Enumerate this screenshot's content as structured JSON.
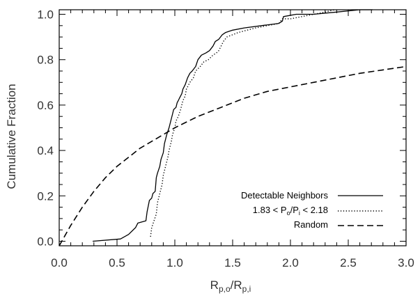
{
  "chart_data": {
    "type": "line",
    "xlabel": {
      "main": "R",
      "sub1": "p,o",
      "mid": "/R",
      "sub2": "p,i"
    },
    "ylabel": "Cumulative Fraction",
    "xlim": [
      0.0,
      3.0
    ],
    "ylim": [
      -0.02,
      1.02
    ],
    "x_ticks": [
      {
        "value": 0.0,
        "label": "0.0"
      },
      {
        "value": 0.5,
        "label": "0.5"
      },
      {
        "value": 1.0,
        "label": "1.0"
      },
      {
        "value": 1.5,
        "label": "1.5"
      },
      {
        "value": 2.0,
        "label": "2.0"
      },
      {
        "value": 2.5,
        "label": "2.5"
      },
      {
        "value": 3.0,
        "label": "3.0"
      }
    ],
    "y_ticks": [
      {
        "value": 0.0,
        "label": "0.0"
      },
      {
        "value": 0.2,
        "label": "0.2"
      },
      {
        "value": 0.4,
        "label": "0.4"
      },
      {
        "value": 0.6,
        "label": "0.6"
      },
      {
        "value": 0.8,
        "label": "0.8"
      },
      {
        "value": 1.0,
        "label": "1.0"
      }
    ],
    "grid": false,
    "legend_position": "bottom-right",
    "series": [
      {
        "name": "Detectable Neighbors",
        "line_style": "solid",
        "x": [
          0.29,
          0.53,
          0.6,
          0.66,
          0.68,
          0.75,
          0.76,
          0.78,
          0.8,
          0.81,
          0.83,
          0.84,
          0.85,
          0.87,
          0.88,
          0.9,
          0.91,
          0.93,
          0.95,
          0.97,
          0.98,
          0.99,
          1.01,
          1.02,
          1.03,
          1.04,
          1.06,
          1.07,
          1.09,
          1.11,
          1.13,
          1.15,
          1.18,
          1.2,
          1.23,
          1.27,
          1.3,
          1.33,
          1.35,
          1.38,
          1.41,
          1.44,
          1.5,
          1.6,
          1.75,
          1.9,
          1.93,
          1.94,
          2.05,
          2.2,
          2.4,
          2.6,
          2.71
        ],
        "y": [
          0.0,
          0.01,
          0.03,
          0.06,
          0.08,
          0.09,
          0.13,
          0.18,
          0.19,
          0.21,
          0.22,
          0.28,
          0.3,
          0.33,
          0.36,
          0.39,
          0.43,
          0.47,
          0.5,
          0.54,
          0.56,
          0.58,
          0.59,
          0.61,
          0.62,
          0.63,
          0.65,
          0.67,
          0.69,
          0.72,
          0.74,
          0.75,
          0.77,
          0.8,
          0.82,
          0.83,
          0.84,
          0.86,
          0.88,
          0.89,
          0.91,
          0.92,
          0.93,
          0.94,
          0.95,
          0.96,
          0.97,
          0.99,
          1.0,
          1.0,
          1.01,
          1.02,
          1.02
        ]
      },
      {
        "name": "1.83 < Po/Pi < 2.18",
        "line_style": "dotted",
        "x": [
          0.79,
          0.8,
          0.84,
          0.85,
          0.87,
          0.89,
          0.9,
          0.92,
          0.94,
          0.95,
          0.97,
          0.98,
          1.0,
          1.01,
          1.03,
          1.05,
          1.07,
          1.09,
          1.1,
          1.13,
          1.16,
          1.18,
          1.22,
          1.25,
          1.29,
          1.33,
          1.36,
          1.38,
          1.4,
          1.42,
          1.45,
          1.55,
          1.7,
          1.8,
          1.9,
          1.93,
          2.0,
          2.1,
          2.2,
          2.3,
          2.38
        ],
        "y": [
          0.02,
          0.06,
          0.12,
          0.17,
          0.21,
          0.25,
          0.29,
          0.33,
          0.37,
          0.4,
          0.44,
          0.47,
          0.5,
          0.53,
          0.55,
          0.58,
          0.62,
          0.64,
          0.67,
          0.7,
          0.72,
          0.75,
          0.77,
          0.79,
          0.8,
          0.82,
          0.83,
          0.84,
          0.86,
          0.88,
          0.9,
          0.92,
          0.94,
          0.95,
          0.96,
          0.98,
          0.98,
          0.99,
          1.0,
          1.01,
          1.02
        ]
      },
      {
        "name": "Random",
        "line_style": "dashed",
        "x": [
          0.0,
          0.1,
          0.2,
          0.3,
          0.4,
          0.5,
          0.6,
          0.7,
          0.8,
          0.9,
          1.0,
          1.2,
          1.4,
          1.6,
          1.8,
          2.0,
          2.2,
          2.4,
          2.6,
          2.8,
          3.0
        ],
        "y": [
          -0.02,
          0.07,
          0.15,
          0.22,
          0.28,
          0.33,
          0.37,
          0.41,
          0.44,
          0.47,
          0.5,
          0.55,
          0.59,
          0.63,
          0.66,
          0.68,
          0.7,
          0.72,
          0.74,
          0.755,
          0.77
        ]
      }
    ],
    "legend": [
      {
        "text": "Detectable Neighbors"
      },
      {
        "text_parts": [
          "1.83 < P",
          "o",
          "/P",
          "i",
          " < 2.18"
        ]
      },
      {
        "text": "Random"
      }
    ]
  }
}
